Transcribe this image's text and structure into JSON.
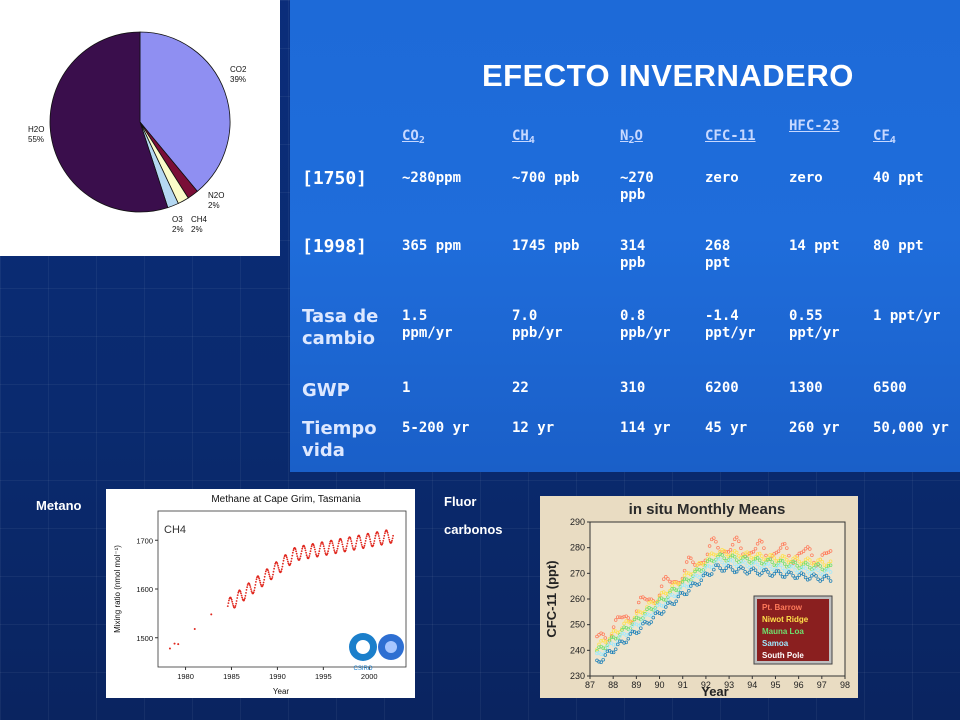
{
  "title": "EFECTO INVERNADERO",
  "pie": {
    "slices": [
      {
        "label": "CO2",
        "pct": "39%",
        "value": 39,
        "color": "#8f8ff2"
      },
      {
        "label": "N2O",
        "pct": "2%",
        "value": 2,
        "color": "#7a0e37"
      },
      {
        "label": "CH4",
        "pct": "2%",
        "value": 2,
        "color": "#fbfbc8"
      },
      {
        "label": "O3",
        "pct": "2%",
        "value": 2,
        "color": "#b5d8f2"
      },
      {
        "label": "H2O",
        "pct": "55%",
        "value": 55,
        "color": "#3a0e4c"
      }
    ]
  },
  "table": {
    "headers": [
      {
        "main": "CO",
        "sub": "2"
      },
      {
        "main": "CH",
        "sub": "4"
      },
      {
        "main": "N",
        "sub": "2",
        "tail": "O"
      },
      {
        "main": "CFC-11",
        "sub": ""
      },
      {
        "main": "HFC-23",
        "sub": ""
      },
      {
        "main": "CF",
        "sub": "4"
      }
    ],
    "rows": [
      {
        "label": "[1750]",
        "cells": [
          "~280ppm",
          "~700 ppb",
          "~270 ppb",
          "zero",
          "zero",
          "40 ppt"
        ]
      },
      {
        "label": "[1998]",
        "cells": [
          "365 ppm",
          "1745 ppb",
          "314 ppb",
          "268 ppt",
          "14 ppt",
          "80 ppt"
        ]
      },
      {
        "label": "Tasa de cambio",
        "cells": [
          "1.5 ppm/yr",
          "7.0 ppb/yr",
          "0.8 ppb/yr",
          "-1.4 ppt/yr",
          "0.55 ppt/yr",
          "1 ppt/yr"
        ]
      },
      {
        "label": "GWP",
        "cells": [
          "1",
          "22",
          "310",
          "6200",
          "1300",
          "6500"
        ]
      },
      {
        "label": "Tiempo vida",
        "cells": [
          "5-200 yr",
          "12 yr",
          "114 yr",
          "45 yr",
          "260 yr",
          "50,000 yr"
        ]
      }
    ]
  },
  "labels": {
    "metano": "Metano",
    "fluor_1": "Fluor",
    "fluor_2": "carbonos"
  },
  "ch4_chart": {
    "title": "Methane at Cape Grim, Tasmania",
    "inner_label": "CH4",
    "ylabel": "Mixing ratio (nmol mol⁻¹)",
    "xlabel": "Year",
    "yticks": [
      "1500",
      "1600",
      "1700"
    ],
    "xticks": [
      "1980",
      "1985",
      "1990",
      "1995",
      "2000"
    ],
    "xlim": [
      1977,
      2004
    ],
    "ylim": [
      1440,
      1760
    ],
    "logo": "CSIRO",
    "color": "#e0261d"
  },
  "cfc_chart": {
    "title": "in situ Monthly Means",
    "ylabel": "CFC-11 (ppt)",
    "xlabel": "Year",
    "yticks": [
      "230",
      "240",
      "250",
      "260",
      "270",
      "280",
      "290"
    ],
    "xticks": [
      "87",
      "88",
      "89",
      "90",
      "91",
      "92",
      "93",
      "94",
      "95",
      "96",
      "97",
      "98"
    ],
    "xlim": [
      87,
      98
    ],
    "ylim": [
      230,
      290
    ],
    "legend": [
      {
        "name": "Pt. Barrow",
        "color": "#ff7a5a"
      },
      {
        "name": "Niwot Ridge",
        "color": "#ffe14a"
      },
      {
        "name": "Mauna Loa",
        "color": "#6ee06e"
      },
      {
        "name": "Samoa",
        "color": "#9ee9ff"
      },
      {
        "name": "South Pole",
        "color": "#ffffff"
      }
    ]
  }
}
